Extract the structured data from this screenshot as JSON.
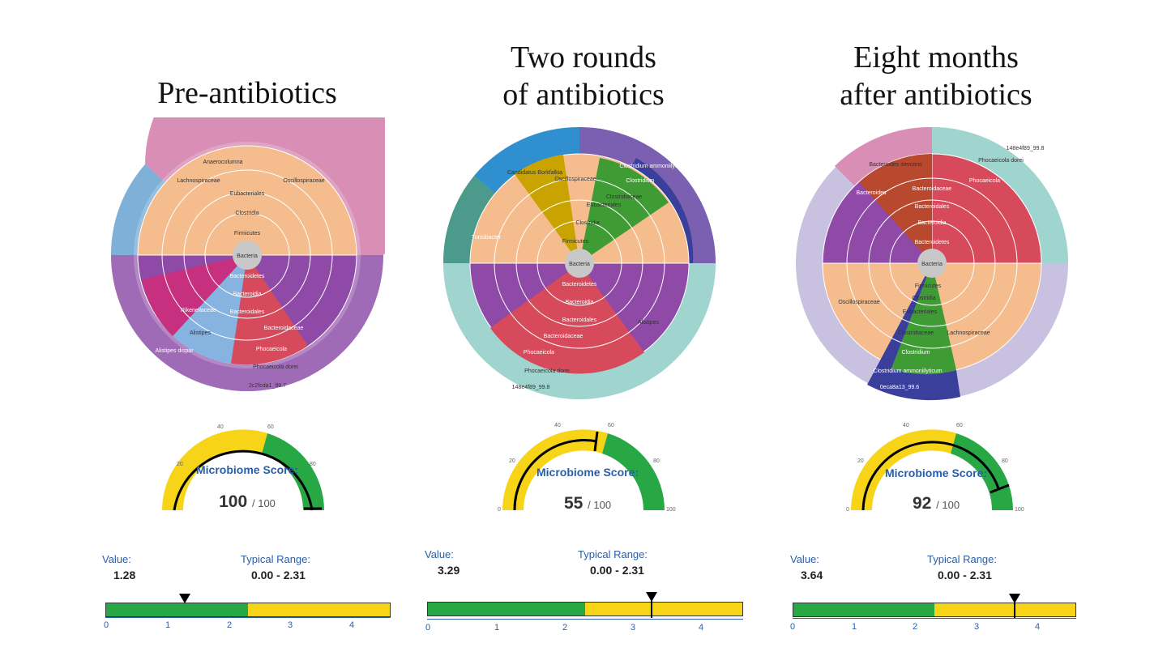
{
  "panels": [
    {
      "title_lines": [
        "Pre-antibiotics"
      ],
      "sunburst": {
        "center": "Bacteria",
        "labels": [
          "Firmicutes",
          "Clostridia",
          "Eubacteriales",
          "Lachnospiraceae",
          "Oscillospiraceae",
          "Anaerocolumna",
          "Bacteroidetes",
          "Bacteroidia",
          "Bacteroidales",
          "Rikenellaceae",
          "Alistipes",
          "Alistipes dispar",
          "Bacteroidaceae",
          "Phocaeicola",
          "Phocaeicola dorei",
          "2c2fcda1_99.7"
        ]
      },
      "gauge": {
        "label": "Microbiome Score:",
        "score": "100",
        "denominator": "/ 100",
        "ticks": [
          "20",
          "40",
          "60",
          "80"
        ],
        "score_value": 100
      },
      "range": {
        "value_label": "Value:",
        "value": "1.28",
        "typical_label": "Typical Range:",
        "typical": "0.00 - 2.31",
        "ticks": [
          "0",
          "1",
          "2",
          "3",
          "4"
        ],
        "value_num": 1.28,
        "typical_max": 2.31
      }
    },
    {
      "title_lines": [
        "Two rounds",
        "of antibiotics"
      ],
      "sunburst": {
        "center": "Bacteria",
        "labels": [
          "Firmicutes",
          "Clostridia",
          "Eubacteriales",
          "Clostridiaceae",
          "Clostridium",
          "Clostridium ammoniilyticum",
          "Oscillospiraceae",
          "Candidatus Borkfalkia",
          "Turicibacter",
          "Bacteroidetes",
          "Bacteroidia",
          "Bacteroidales",
          "Bacteroidaceae",
          "Phocaeicola",
          "Phocaeicola dorei",
          "148e4f89_99.8",
          "Alistipes"
        ]
      },
      "gauge": {
        "label": "Microbiome Score:",
        "score": "55",
        "denominator": "/ 100",
        "ticks": [
          "0",
          "20",
          "40",
          "60",
          "80",
          "100"
        ],
        "score_value": 55
      },
      "range": {
        "value_label": "Value:",
        "value": "3.29",
        "typical_label": "Typical Range:",
        "typical": "0.00 - 2.31",
        "ticks": [
          "0",
          "1",
          "2",
          "3",
          "4"
        ],
        "value_num": 3.29,
        "typical_max": 2.31
      }
    },
    {
      "title_lines": [
        "Eight months",
        "after antibiotics"
      ],
      "sunburst": {
        "center": "Bacteria",
        "labels": [
          "Bacteroidetes",
          "Bacteroidia",
          "Bacteroidales",
          "Bacteroidaceae",
          "Phocaeicola",
          "Phocaeicola dorei",
          "148e4f89_99.8",
          "Bacteroides",
          "Bacteroides stercoris",
          "Firmicutes",
          "Clostridia",
          "Eubacteriales",
          "Clostridiaceae",
          "Clostridium",
          "Clostridium ammoniilyticum",
          "Lachnospiraceae",
          "Oscillospiraceae",
          "0eca8a13_99.6"
        ]
      },
      "gauge": {
        "label": "Microbiome Score:",
        "score": "92",
        "denominator": "/ 100",
        "ticks": [
          "0",
          "20",
          "40",
          "60",
          "80",
          "100"
        ],
        "score_value": 92
      },
      "range": {
        "value_label": "Value:",
        "value": "3.64",
        "typical_label": "Typical Range:",
        "typical": "0.00 - 2.31",
        "ticks": [
          "0",
          "1",
          "2",
          "3",
          "4"
        ],
        "value_num": 3.64,
        "typical_max": 2.31
      }
    }
  ],
  "colors": {
    "firmicutes": "#f5bd8e",
    "bacteroidetes": "#8e4aa6",
    "phocaeicola": "#d74a5c",
    "dorei": "#9fd4cf",
    "green": "#28a745",
    "yellow": "#f7d417",
    "text_blue": "#2a5ea8"
  }
}
